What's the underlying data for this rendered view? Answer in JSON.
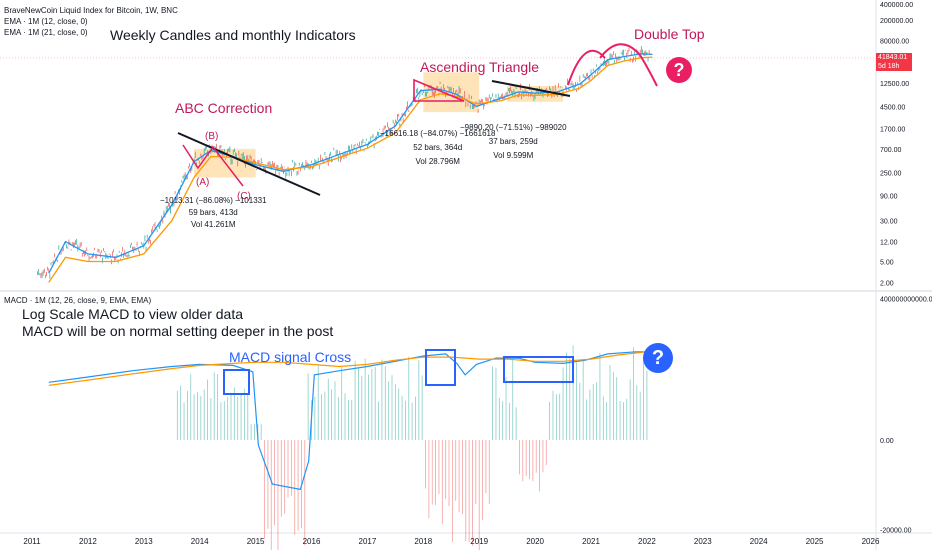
{
  "header": {
    "title": "BraveNewCoin Liquid Index for Bitcoin, 1W, BNC",
    "ema1": "EMA · 1M (12, close, 0)",
    "ema2": "EMA · 1M (21, close, 0)",
    "macd": "MACD · 1M (12, 26, close, 9, EMA, EMA)"
  },
  "annotations": {
    "weekly": "Weekly Candles and monthly Indicators",
    "abc": "ABC Correction",
    "ascending": "Ascending Triangle",
    "double_top": "Double Top",
    "question": "?",
    "log_macd_1": "Log Scale MACD to view older data",
    "log_macd_2": "MACD will be on normal setting deeper in the post",
    "macd_cross": "MACD signal Cross",
    "wave_a": "(A)",
    "wave_b": "(B)",
    "wave_c": "(C)"
  },
  "measurements": [
    {
      "line1": "−1013.31 (−86.08%) −101331",
      "line2": "59 bars, 413d",
      "line3": "Vol 41.261M"
    },
    {
      "line1": "−16616.18 (−84.07%) −1661618",
      "line2": "52 bars, 364d",
      "line3": "Vol 28.796M"
    },
    {
      "line1": "−9890.20 (−71.51%) −989020",
      "line2": "37 bars, 259d",
      "line3": "Vol 9.599M"
    }
  ],
  "price_badge": {
    "value": "41843.01",
    "sub": "5d 18h",
    "color": "#f23645"
  },
  "colors": {
    "up": "#26a69a",
    "down": "#ef5350",
    "ema12": "#2196f3",
    "ema21": "#ff9800",
    "pink": "#e91e63",
    "blue_box": "#2962ff",
    "orange_zone": "#ffcc80"
  },
  "chart_data": [
    {
      "type": "line",
      "title": "BraveNewCoin Liquid Index for Bitcoin, 1W, BNC",
      "y_scale": "log",
      "ylim": [
        1.5,
        400000
      ],
      "xlim": [
        2010.8,
        2026.9
      ],
      "y_ticks": [
        "400000.00",
        "200000.00",
        "80000.00",
        "12500.00",
        "4500.00",
        "1700.00",
        "700.00",
        "250.00",
        "90.00",
        "30.00",
        "12.00",
        "5.00",
        "2.00"
      ],
      "x_ticks": [
        "2011",
        "2012",
        "2013",
        "2014",
        "2015",
        "2016",
        "2017",
        "2018",
        "2019",
        "2020",
        "2021",
        "2022",
        "2023",
        "2024",
        "2025",
        "2026"
      ],
      "series": [
        {
          "name": "EMA · 1M (12, close, 0)",
          "x": [
            2011.3,
            2011.6,
            2012.0,
            2012.5,
            2013.0,
            2013.5,
            2013.9,
            2014.2,
            2014.6,
            2015.0,
            2015.5,
            2016.0,
            2016.5,
            2017.0,
            2017.5,
            2017.95,
            2018.3,
            2018.6,
            2018.95,
            2019.4,
            2019.7,
            2020.0,
            2020.4,
            2020.8,
            2021.0,
            2021.3,
            2021.6,
            2021.9,
            2022.1
          ],
          "values": [
            3,
            12,
            7,
            6,
            10,
            60,
            400,
            650,
            500,
            350,
            260,
            350,
            550,
            850,
            1900,
            9000,
            9500,
            7600,
            4500,
            6500,
            8500,
            8000,
            8500,
            12000,
            18000,
            35000,
            40000,
            45000,
            44000
          ]
        },
        {
          "name": "EMA · 1M (21, close, 0)",
          "x": [
            2011.3,
            2011.6,
            2012.0,
            2012.5,
            2013.0,
            2013.5,
            2013.9,
            2014.2,
            2014.6,
            2015.0,
            2015.5,
            2016.0,
            2016.5,
            2017.0,
            2017.5,
            2017.95,
            2018.3,
            2018.6,
            2018.95,
            2019.4,
            2019.7,
            2020.0,
            2020.4,
            2020.8,
            2021.0,
            2021.3,
            2021.6,
            2021.9,
            2022.1
          ],
          "values": [
            2,
            6,
            5,
            5,
            7,
            30,
            200,
            500,
            480,
            380,
            280,
            320,
            480,
            720,
            1400,
            6000,
            7800,
            7000,
            5000,
            5800,
            7400,
            7300,
            7600,
            10000,
            14000,
            27000,
            33000,
            38000,
            39000
          ]
        }
      ]
    },
    {
      "type": "line",
      "title": "MACD · 1M (12, 26, close, 9, EMA, EMA)",
      "y_ticks": [
        "400000000000.00",
        "0.00",
        "-20000.00"
      ],
      "series": [
        {
          "name": "MACD",
          "x": [
            2011.3,
            2012.0,
            2012.8,
            2013.5,
            2014.0,
            2014.6,
            2014.95,
            2015.05,
            2015.3,
            2015.8,
            2015.95,
            2016.05,
            2016.5,
            2017.0,
            2017.5,
            2018.0,
            2018.4,
            2018.6,
            2018.75,
            2018.95,
            2019.3,
            2019.7,
            2020.0,
            2020.5,
            2020.9,
            2021.3,
            2021.8,
            2022.0
          ],
          "values": [
            0.55,
            0.6,
            0.66,
            0.7,
            0.72,
            0.71,
            0.65,
            -0.05,
            -0.42,
            -0.47,
            -0.2,
            0.62,
            0.66,
            0.7,
            0.75,
            0.8,
            0.82,
            0.73,
            0.62,
            0.72,
            0.78,
            0.78,
            0.74,
            0.73,
            0.76,
            0.82,
            0.84,
            0.84
          ]
        },
        {
          "name": "Signal",
          "x": [
            2011.3,
            2012.0,
            2012.8,
            2013.5,
            2014.0,
            2014.6,
            2015.0,
            2015.5,
            2016.0,
            2016.5,
            2017.0,
            2017.5,
            2018.0,
            2018.5,
            2019.0,
            2019.5,
            2020.0,
            2020.5,
            2021.0,
            2021.5,
            2022.0
          ],
          "values": [
            0.52,
            0.57,
            0.63,
            0.68,
            0.71,
            0.73,
            0.74,
            0.74,
            0.72,
            0.7,
            0.72,
            0.76,
            0.79,
            0.79,
            0.77,
            0.77,
            0.75,
            0.75,
            0.77,
            0.81,
            0.84
          ]
        }
      ]
    }
  ]
}
